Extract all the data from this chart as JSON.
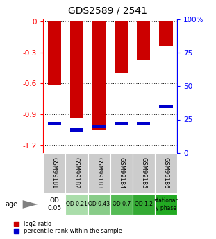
{
  "title": "GDS2589 / 2541",
  "samples": [
    "GSM99181",
    "GSM99182",
    "GSM99183",
    "GSM99184",
    "GSM99185",
    "GSM99186"
  ],
  "log2_ratios": [
    -0.62,
    -0.93,
    -1.05,
    -0.5,
    -0.37,
    -0.24
  ],
  "percentile_ranks_pct": [
    22,
    17,
    20,
    22,
    22,
    35
  ],
  "bar_color": "#cc0000",
  "percentile_color": "#0000cc",
  "ylim_left": [
    -1.27,
    0.02
  ],
  "ylim_right": [
    0,
    100
  ],
  "yticks_left": [
    0,
    -0.3,
    -0.6,
    -0.9,
    -1.2
  ],
  "ytick_labels_right": [
    "0",
    "25",
    "50",
    "75",
    "100%"
  ],
  "od_labels": [
    "OD\n0.05",
    "OD 0.21",
    "OD 0.43",
    "OD 0.7",
    "OD 1.2",
    "stationar\ny phase"
  ],
  "od_colors": [
    "#ffffff",
    "#aaddaa",
    "#88cc88",
    "#55bb55",
    "#33aa33",
    "#22aa22"
  ],
  "sample_bg_color": "#cccccc",
  "age_label": "age",
  "legend_log2": "log2 ratio",
  "legend_pct": "percentile rank within the sample",
  "bar_width": 0.6,
  "title_fontsize": 10,
  "tick_fontsize": 7.5
}
